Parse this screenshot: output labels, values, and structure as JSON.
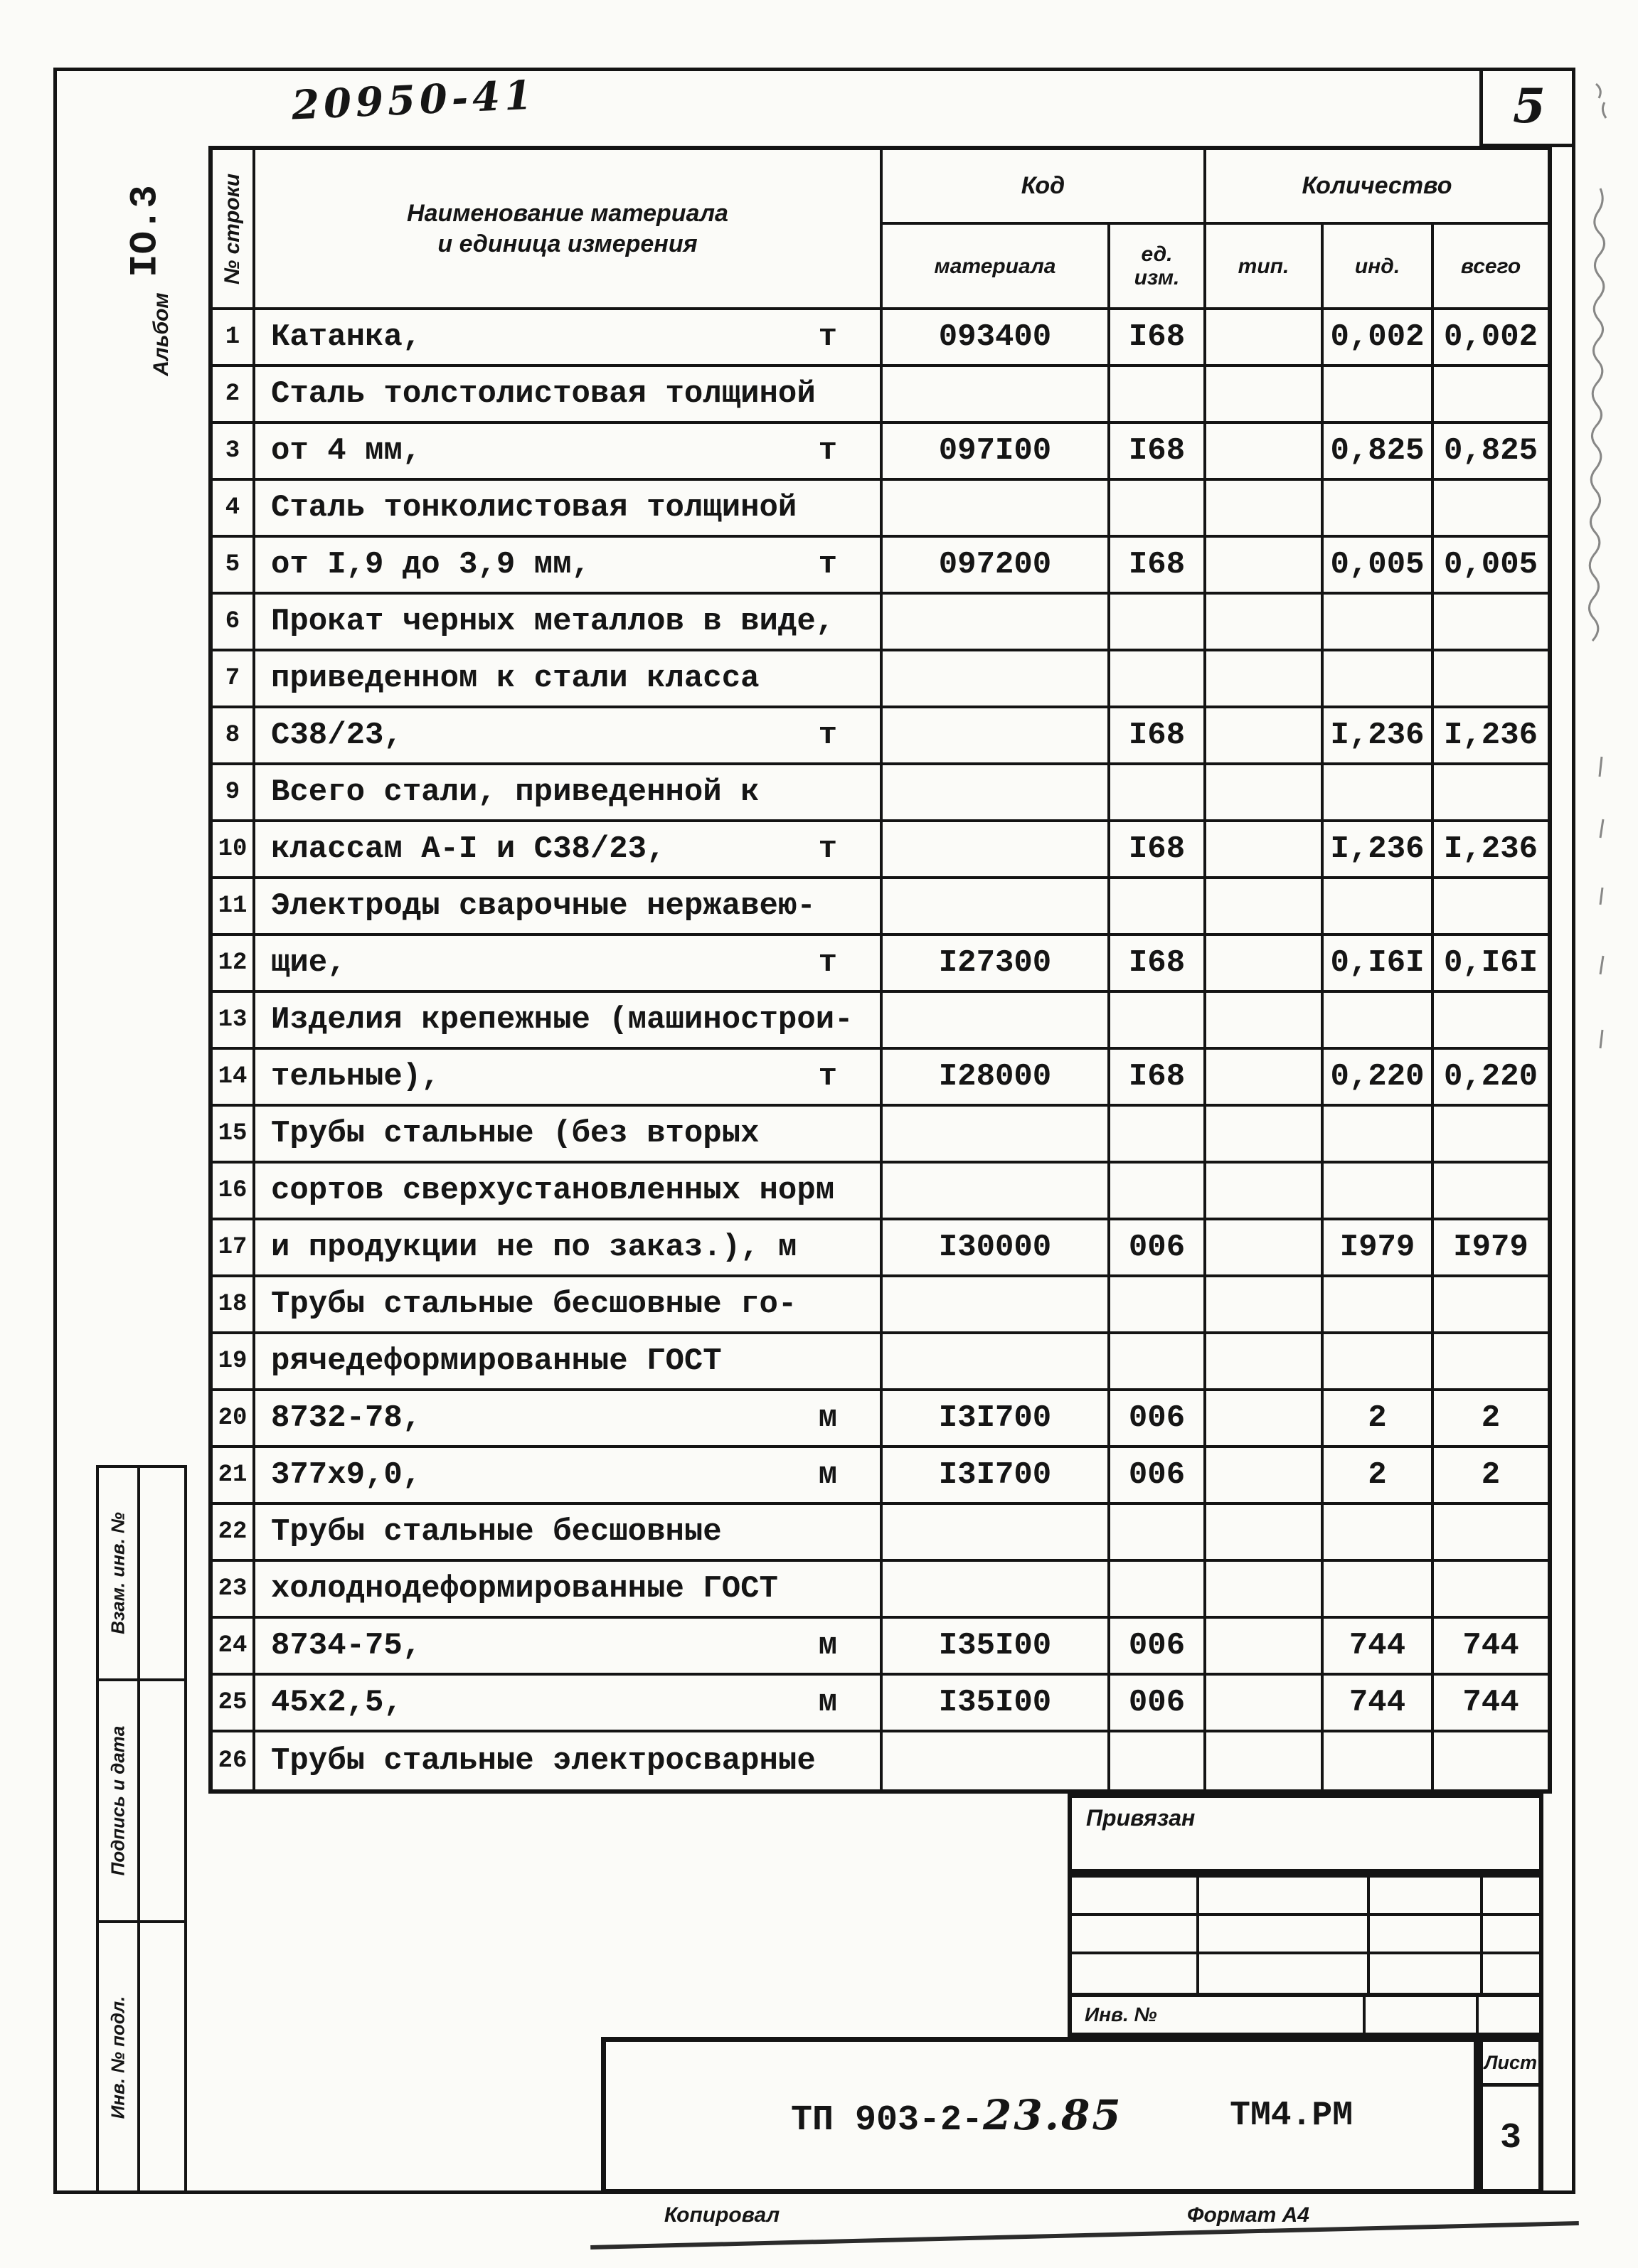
{
  "page": {
    "sheet_number_handwritten": "5",
    "doc_number_handwritten": "20950-41",
    "album_code": "ІО.3",
    "album_label": "Альбом",
    "sidebar": [
      {
        "label": "Взам. инв. №"
      },
      {
        "label": "Подпись и дата"
      },
      {
        "label": "Инв. № подл."
      }
    ]
  },
  "table": {
    "headers": {
      "row_number": "№ строки",
      "name_line1": "Наименование материала",
      "name_line2": "и единица измерения",
      "code": "Код",
      "code_material": "материала",
      "code_unit": "ед.\nизм.",
      "quantity": "Количество",
      "qty_type": "тип.",
      "qty_ind": "инд.",
      "qty_total": "всего"
    },
    "rows": [
      {
        "n": "1",
        "name": "Катанка,",
        "unit": "т",
        "code": "093400",
        "ucode": "І68",
        "type": "",
        "ind": "0,002",
        "total": "0,002"
      },
      {
        "n": "2",
        "name": "Сталь толстолистовая толщиной",
        "unit": "",
        "code": "",
        "ucode": "",
        "type": "",
        "ind": "",
        "total": ""
      },
      {
        "n": "3",
        "name": "от 4 мм,",
        "unit": "т",
        "code": "097І00",
        "ucode": "І68",
        "type": "",
        "ind": "0,825",
        "total": "0,825"
      },
      {
        "n": "4",
        "name": "Сталь тонколистовая толщиной",
        "unit": "",
        "code": "",
        "ucode": "",
        "type": "",
        "ind": "",
        "total": ""
      },
      {
        "n": "5",
        "name": "от І,9 до 3,9 мм,",
        "unit": "т",
        "code": "097200",
        "ucode": "І68",
        "type": "",
        "ind": "0,005",
        "total": "0,005"
      },
      {
        "n": "6",
        "name": "Прокат черных металлов в виде,",
        "unit": "",
        "code": "",
        "ucode": "",
        "type": "",
        "ind": "",
        "total": ""
      },
      {
        "n": "7",
        "name": "приведенном к стали класса",
        "unit": "",
        "code": "",
        "ucode": "",
        "type": "",
        "ind": "",
        "total": ""
      },
      {
        "n": "8",
        "name": "С38/23,",
        "unit": "т",
        "code": "",
        "ucode": "І68",
        "type": "",
        "ind": "І,236",
        "total": "І,236"
      },
      {
        "n": "9",
        "name": "Всего стали, приведенной к",
        "unit": "",
        "code": "",
        "ucode": "",
        "type": "",
        "ind": "",
        "total": ""
      },
      {
        "n": "10",
        "name": "классам А-І и С38/23,",
        "unit": "т",
        "code": "",
        "ucode": "І68",
        "type": "",
        "ind": "І,236",
        "total": "І,236"
      },
      {
        "n": "11",
        "name": "Электроды сварочные нержавею-",
        "unit": "",
        "code": "",
        "ucode": "",
        "type": "",
        "ind": "",
        "total": ""
      },
      {
        "n": "12",
        "name": "щие,",
        "unit": "т",
        "code": "І27300",
        "ucode": "І68",
        "type": "",
        "ind": "0,І6І",
        "total": "0,І6І"
      },
      {
        "n": "13",
        "name": "Изделия крепежные (машинострои-",
        "unit": "",
        "code": "",
        "ucode": "",
        "type": "",
        "ind": "",
        "total": ""
      },
      {
        "n": "14",
        "name": "тельные),",
        "unit": "т",
        "code": "І28000",
        "ucode": "І68",
        "type": "",
        "ind": "0,220",
        "total": "0,220"
      },
      {
        "n": "15",
        "name": "Трубы стальные (без вторых",
        "unit": "",
        "code": "",
        "ucode": "",
        "type": "",
        "ind": "",
        "total": ""
      },
      {
        "n": "16",
        "name": "сортов сверхустановленных норм",
        "unit": "",
        "code": "",
        "ucode": "",
        "type": "",
        "ind": "",
        "total": ""
      },
      {
        "n": "17",
        "name": "и продукции не по заказ.), м",
        "unit": "",
        "code": "І30000",
        "ucode": "006",
        "type": "",
        "ind": "І979",
        "total": "І979"
      },
      {
        "n": "18",
        "name": "Трубы стальные бесшовные го-",
        "unit": "",
        "code": "",
        "ucode": "",
        "type": "",
        "ind": "",
        "total": ""
      },
      {
        "n": "19",
        "name": "рячедеформированные ГОСТ",
        "unit": "",
        "code": "",
        "ucode": "",
        "type": "",
        "ind": "",
        "total": ""
      },
      {
        "n": "20",
        "name": "8732-78,",
        "unit": "м",
        "code": "І3І700",
        "ucode": "006",
        "type": "",
        "ind": "2",
        "total": "2"
      },
      {
        "n": "21",
        "name": "377х9,0,",
        "unit": "м",
        "code": "І3І700",
        "ucode": "006",
        "type": "",
        "ind": "2",
        "total": "2"
      },
      {
        "n": "22",
        "name": "Трубы стальные бесшовные",
        "unit": "",
        "code": "",
        "ucode": "",
        "type": "",
        "ind": "",
        "total": ""
      },
      {
        "n": "23",
        "name": "холоднодеформированные ГОСТ",
        "unit": "",
        "code": "",
        "ucode": "",
        "type": "",
        "ind": "",
        "total": ""
      },
      {
        "n": "24",
        "name": "8734-75,",
        "unit": "м",
        "code": "І35І00",
        "ucode": "006",
        "type": "",
        "ind": "744",
        "total": "744"
      },
      {
        "n": "25",
        "name": "45х2,5,",
        "unit": "м",
        "code": "І35І00",
        "ucode": "006",
        "type": "",
        "ind": "744",
        "total": "744"
      },
      {
        "n": "26",
        "name": "Трубы стальные электросварные",
        "unit": "",
        "code": "",
        "ucode": "",
        "type": "",
        "ind": "",
        "total": ""
      }
    ]
  },
  "stamp": {
    "attached_label": "Привязан",
    "inv_label": "Инв. №",
    "doc_code_typed": "ТП 903-2-",
    "doc_code_handwritten": "23.85",
    "doc_set": "ТМ4.РМ",
    "sheet_label": "Лист",
    "sheet_value": "3",
    "copied_label": "Копировал",
    "format_label": "Формат А4"
  }
}
